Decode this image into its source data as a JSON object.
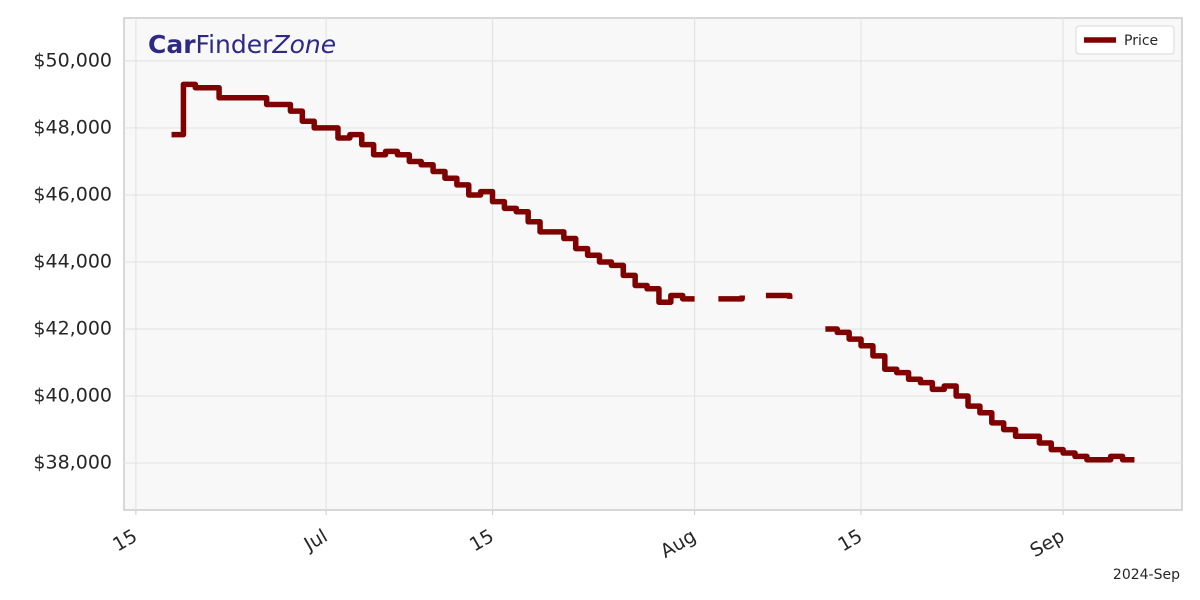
{
  "chart_data": {
    "type": "line",
    "brand": [
      "Car",
      "Finder",
      "Zone"
    ],
    "x_offset_label": "2024-Sep",
    "drawstyle": "steps-post",
    "grid": true,
    "legend": "upper right",
    "x": [
      "2024-06-18",
      "2024-06-19",
      "2024-06-20",
      "2024-06-21",
      "2024-06-22",
      "2024-06-23",
      "2024-06-24",
      "2024-06-25",
      "2024-06-26",
      "2024-06-27",
      "2024-06-28",
      "2024-06-29",
      "2024-06-30",
      "2024-07-01",
      "2024-07-02",
      "2024-07-03",
      "2024-07-04",
      "2024-07-05",
      "2024-07-06",
      "2024-07-07",
      "2024-07-08",
      "2024-07-09",
      "2024-07-10",
      "2024-07-11",
      "2024-07-12",
      "2024-07-13",
      "2024-07-14",
      "2024-07-15",
      "2024-07-16",
      "2024-07-17",
      "2024-07-18",
      "2024-07-19",
      "2024-07-20",
      "2024-07-21",
      "2024-07-22",
      "2024-07-23",
      "2024-07-24",
      "2024-07-25",
      "2024-07-26",
      "2024-07-27",
      "2024-07-28",
      "2024-07-29",
      "2024-07-30",
      "2024-07-31",
      "2024-08-01",
      "2024-08-02",
      "2024-08-03",
      "2024-08-04",
      "2024-08-05",
      "2024-08-06",
      "2024-08-07",
      "2024-08-08",
      "2024-08-09",
      "2024-08-10",
      "2024-08-11",
      "2024-08-12",
      "2024-08-13",
      "2024-08-14",
      "2024-08-15",
      "2024-08-16",
      "2024-08-17",
      "2024-08-18",
      "2024-08-19",
      "2024-08-20",
      "2024-08-21",
      "2024-08-22",
      "2024-08-23",
      "2024-08-24",
      "2024-08-25",
      "2024-08-26",
      "2024-08-27",
      "2024-08-28",
      "2024-08-29",
      "2024-08-30",
      "2024-08-31",
      "2024-09-01",
      "2024-09-02",
      "2024-09-03",
      "2024-09-04",
      "2024-09-05",
      "2024-09-06",
      "2024-09-07"
    ],
    "series": [
      {
        "name": "Price",
        "color": "#800000",
        "values": [
          47800,
          49300,
          49200,
          49200,
          48900,
          48900,
          48900,
          48900,
          48700,
          48700,
          48500,
          48200,
          48000,
          48000,
          47700,
          47800,
          47500,
          47200,
          47300,
          47200,
          47000,
          46900,
          46700,
          46500,
          46300,
          46000,
          46100,
          45800,
          45600,
          45500,
          45200,
          44900,
          44900,
          44700,
          44400,
          44200,
          44000,
          43900,
          43600,
          43300,
          43200,
          42800,
          43000,
          42900,
          42900,
          null,
          42900,
          42900,
          43000,
          null,
          43000,
          43000,
          42900,
          null,
          null,
          42000,
          41900,
          41700,
          41500,
          41200,
          40800,
          40700,
          40500,
          40400,
          40200,
          40300,
          40000,
          39700,
          39500,
          39200,
          39000,
          38800,
          38800,
          38600,
          38400,
          38300,
          38200,
          38100,
          38100,
          38200,
          38100,
          38100
        ]
      }
    ],
    "xlim": [
      "2024-06-14",
      "2024-09-11"
    ],
    "xticks": [
      {
        "value": "2024-06-15",
        "label": "15"
      },
      {
        "value": "2024-07-01",
        "label": "Jul"
      },
      {
        "value": "2024-07-15",
        "label": "15"
      },
      {
        "value": "2024-08-01",
        "label": "Aug"
      },
      {
        "value": "2024-08-15",
        "label": "15"
      },
      {
        "value": "2024-09-01",
        "label": "Sep"
      }
    ],
    "ylim": [
      36600,
      51280
    ],
    "yticks": [
      {
        "value": 38000,
        "label": "$38,000"
      },
      {
        "value": 40000,
        "label": "$40,000"
      },
      {
        "value": 42000,
        "label": "$42,000"
      },
      {
        "value": 44000,
        "label": "$44,000"
      },
      {
        "value": 46000,
        "label": "$46,000"
      },
      {
        "value": 48000,
        "label": "$48,000"
      },
      {
        "value": 50000,
        "label": "$50,000"
      }
    ]
  }
}
